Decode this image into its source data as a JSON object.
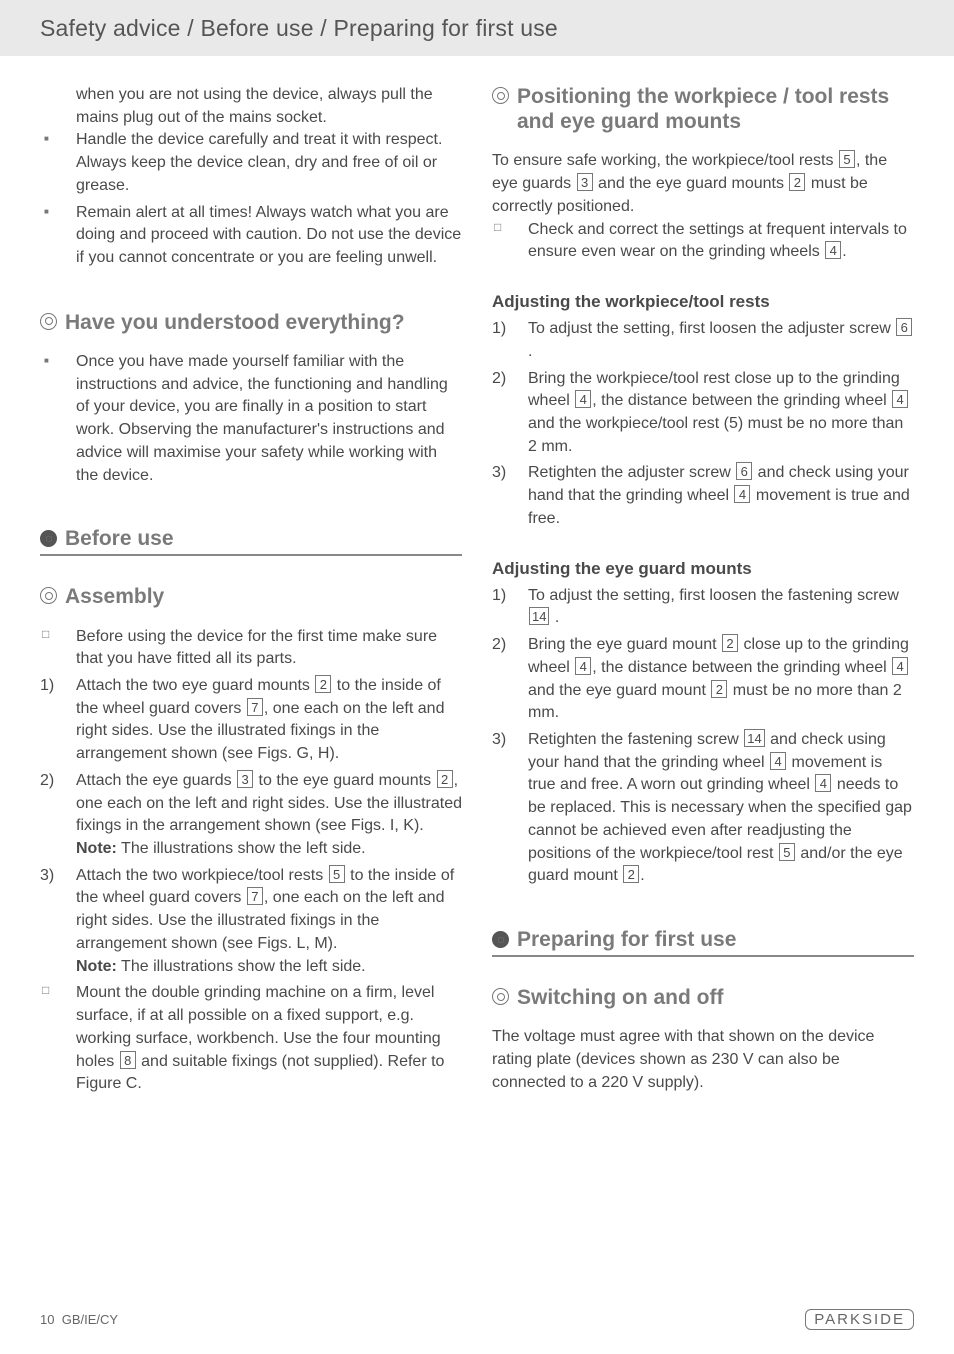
{
  "header": {
    "title": "Safety advice / Before use / Preparing for first use"
  },
  "left": {
    "cont1": "when you are not using the device, always pull the mains plug out of the mains socket.",
    "bullet1": "Handle the device carefully and treat it with respect. Always keep the device clean, dry and free of oil or grease.",
    "bullet2": "Remain alert at all times! Always watch what you are doing and proceed with caution. Do not use the device if you cannot concentrate or you are feeling unwell.",
    "h_understood": "Have you understood everything?",
    "understood_b1": "Once you have made yourself familiar with the instructions and advice, the functioning and handling of your device, you are finally in a position to start work. Observing the manufacturer's instructions and advice will maximise your safety while working with the device.",
    "h_before": "Before use",
    "h_assembly": "Assembly",
    "asm_pre": "Before using the device for the first time make sure that you have fitted all its parts.",
    "asm1a": "Attach the two eye guard mounts ",
    "asm1b": " to the inside of the wheel guard covers ",
    "asm1c": ", one each on the left and right sides. Use the illustrated fixings in the arrangement shown (see Figs. G, H).",
    "asm2a": "Attach the eye guards ",
    "asm2b": " to the eye guard mounts ",
    "asm2c": ", one each on the left and right sides. Use the illustrated fixings in the arrangement shown (see Figs. I, K).",
    "asm2_note": " The illustrations show the left side.",
    "asm3a": "Attach the two workpiece/tool rests ",
    "asm3b": " to the inside of the wheel guard covers ",
    "asm3c": ", one each on the left and right sides. Use the illustrated fixings in the arrangement shown (see Figs. L, M).",
    "asm3_note": " The illustrations show the left side.",
    "asm4a": "Mount the double grinding machine on a firm, level surface, if at all possible on a fixed support, e.g. working surface, workbench. Use the four mounting holes ",
    "asm4b": " and suitable fixings (not supplied). Refer to Figure C.",
    "note_label": "Note:"
  },
  "right": {
    "h_pos": "Positioning the workpiece / tool rests and eye guard mounts",
    "pos_p1a": "To ensure safe working, the workpiece/tool rests ",
    "pos_p1b": ", the eye guards ",
    "pos_p1c": " and the eye guard mounts ",
    "pos_p1d": " must be correctly positioned.",
    "pos_sq1a": "Check and correct the settings at frequent intervals to ensure even wear on the grinding wheels ",
    "h_adj_rests": "Adjusting the workpiece/tool rests",
    "ar1a": "To adjust the setting, first loosen the adjuster screw ",
    "ar2a": "Bring the workpiece/tool rest close up to the grinding wheel ",
    "ar2b": ", the distance between the grinding wheel ",
    "ar2c": " and the workpiece/tool rest (5) must be no more than 2 mm.",
    "ar3a": "Retighten the adjuster screw ",
    "ar3b": " and check using your hand that the grinding wheel ",
    "ar3c": " movement is true and free.",
    "h_adj_eye": "Adjusting the eye guard mounts",
    "ae1a": "To adjust the setting, first loosen the fastening screw ",
    "ae2a": "Bring the eye guard mount ",
    "ae2b": " close up to the grinding wheel ",
    "ae2c": ", the distance between the grinding wheel ",
    "ae2d": " and the eye guard mount ",
    "ae2e": " must be no more than 2 mm.",
    "ae3a": "Retighten the fastening screw ",
    "ae3b": " and check using your hand that the grinding wheel ",
    "ae3c": " movement is true and free. A worn out grinding wheel ",
    "ae3d": " needs to be replaced. This is necessary when the specified gap cannot be achieved even after readjusting the positions of the workpiece/tool rest ",
    "ae3e": " and/or the eye guard mount ",
    "h_prep": "Preparing for first use",
    "h_switch": "Switching on and off",
    "switch_p": "The voltage must agree with that shown on the device rating plate (devices shown as 230 V can also be connected to a 220 V supply)."
  },
  "refs": {
    "r2": "2",
    "r3": "3",
    "r4": "4",
    "r5": "5",
    "r6": "6",
    "r7": "7",
    "r8": "8",
    "r14": "14"
  },
  "footer": {
    "page": "10",
    "region": "GB/IE/CY",
    "brand": "PARKSIDE"
  }
}
